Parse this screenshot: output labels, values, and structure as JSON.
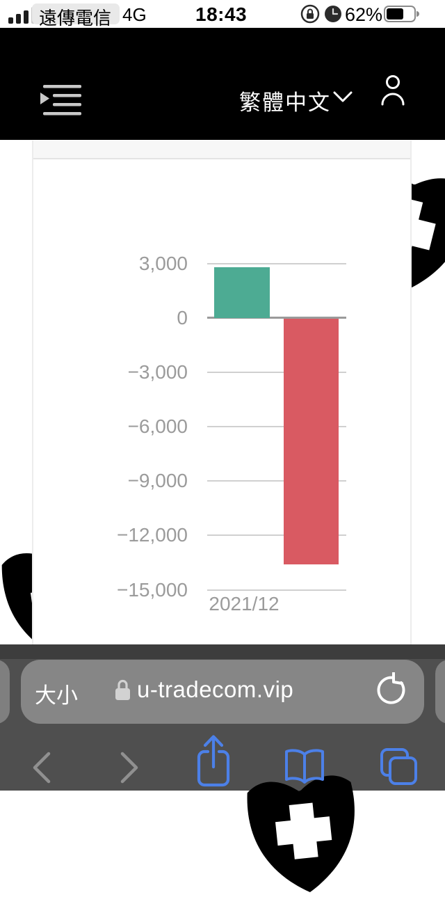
{
  "status_bar": {
    "carrier": "遠傳電信",
    "network": "4G",
    "time": "18:43",
    "battery_percent": "62%",
    "battery_level": 0.62,
    "icons": [
      "signal-bars-icon",
      "rotation-lock-icon",
      "clock-icon",
      "battery-icon"
    ]
  },
  "header": {
    "language_label": "繁體中文",
    "icons": [
      "menu-unfold-icon",
      "chevron-down-icon",
      "person-icon"
    ],
    "background": "#000000"
  },
  "chart_data": {
    "type": "bar",
    "title": "",
    "xlabel": "",
    "ylabel": "",
    "categories": [
      "2021/12"
    ],
    "series": [
      {
        "name": "positive-value",
        "color": "#4dab93",
        "values": [
          2780
        ]
      },
      {
        "name": "negative-value",
        "color": "#d95a62",
        "values": [
          -13540
        ]
      }
    ],
    "ylim": [
      -15000,
      3000
    ],
    "yticks": [
      3000,
      0,
      -3000,
      -6000,
      -9000,
      -12000,
      -15000
    ],
    "ytick_labels": [
      "3,000",
      "0",
      "−3,000",
      "−6,000",
      "−9,000",
      "−12,000",
      "−15,000"
    ],
    "grid": true,
    "legend": false,
    "gridline_color": "#d0d0d0",
    "zero_line_color": "#9a9a9a"
  },
  "watermark": {
    "shape": "shield-cross-icon",
    "color": "#dddddd"
  },
  "browser": {
    "text_size_label": "大小",
    "url": "u-tradecom.vip",
    "lock_icon": "lock-icon",
    "reload_icon": "reload-icon",
    "toolbar_icons": [
      "back-icon",
      "forward-icon",
      "share-icon",
      "bookmarks-icon",
      "tabs-icon"
    ],
    "accent_blue": "#4c80e8"
  }
}
